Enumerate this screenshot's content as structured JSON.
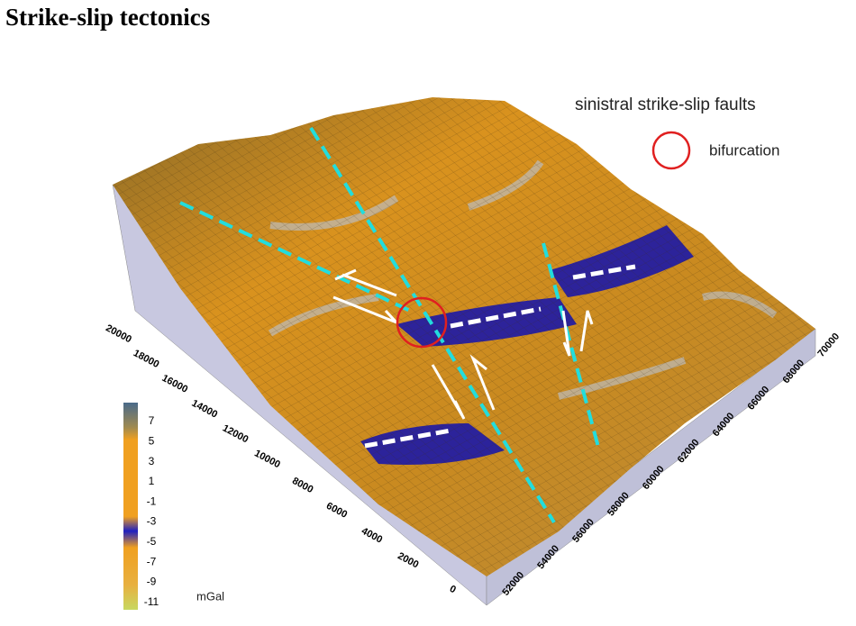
{
  "title": "Strike-slip tectonics",
  "legend": {
    "faults": "sinistral strike-slip faults",
    "bifurcation": "bifurcation"
  },
  "colorbar": {
    "unit": "mGal",
    "labels": [
      "7",
      "5",
      "3",
      "1",
      "-1",
      "-3",
      "-5",
      "-7",
      "-9",
      "-11"
    ]
  },
  "y_axis": {
    "labels": [
      "20000",
      "18000",
      "16000",
      "14000",
      "12000",
      "10000",
      "8000",
      "6000",
      "4000",
      "2000",
      "0"
    ]
  },
  "x_axis": {
    "labels": [
      "52000",
      "54000",
      "56000",
      "58000",
      "60000",
      "62000",
      "64000",
      "66000",
      "68000",
      "70000"
    ]
  }
}
